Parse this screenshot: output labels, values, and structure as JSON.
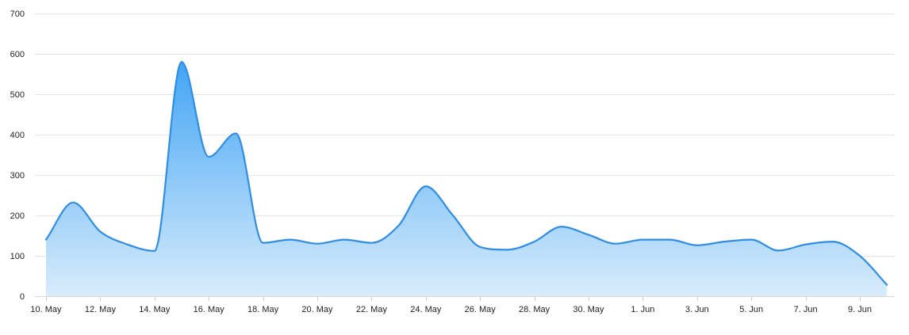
{
  "chart_data": {
    "type": "area",
    "title": "",
    "xlabel": "",
    "ylabel": "",
    "ylim": [
      0,
      700
    ],
    "grid": true,
    "legend": "none",
    "y_ticks": [
      "0",
      "100",
      "200",
      "300",
      "400",
      "500",
      "600",
      "700"
    ],
    "y_tick_values": [
      0,
      100,
      200,
      300,
      400,
      500,
      600,
      700
    ],
    "x_ticks": [
      "10. May",
      "12. May",
      "14. May",
      "16. May",
      "18. May",
      "20. May",
      "22. May",
      "24. May",
      "26. May",
      "28. May",
      "30. May",
      "1. Jun",
      "3. Jun",
      "5. Jun",
      "7. Jun",
      "9. Jun"
    ],
    "x_tick_dates": [
      "2020-05-10",
      "2020-05-12",
      "2020-05-14",
      "2020-05-16",
      "2020-05-18",
      "2020-05-20",
      "2020-05-22",
      "2020-05-24",
      "2020-05-26",
      "2020-05-28",
      "2020-05-30",
      "2020-06-01",
      "2020-06-03",
      "2020-06-05",
      "2020-06-07",
      "2020-06-09"
    ],
    "x": [
      "2020-05-10",
      "2020-05-11",
      "2020-05-12",
      "2020-05-13",
      "2020-05-14",
      "2020-05-15",
      "2020-05-16",
      "2020-05-17",
      "2020-05-18",
      "2020-05-19",
      "2020-05-20",
      "2020-05-21",
      "2020-05-22",
      "2020-05-23",
      "2020-05-24",
      "2020-05-25",
      "2020-05-26",
      "2020-05-27",
      "2020-05-28",
      "2020-05-29",
      "2020-05-30",
      "2020-05-31",
      "2020-06-01",
      "2020-06-02",
      "2020-06-03",
      "2020-06-04",
      "2020-06-05",
      "2020-06-06",
      "2020-06-07",
      "2020-06-08",
      "2020-06-09",
      "2020-06-10"
    ],
    "series": [
      {
        "values": [
          140,
          232,
          160,
          128,
          112,
          580,
          345,
          403,
          132,
          140,
          130,
          140,
          132,
          175,
          272,
          200,
          122,
          115,
          135,
          172,
          152,
          130,
          140,
          140,
          126,
          135,
          140,
          113,
          128,
          135,
          100,
          28
        ],
        "color": "#2f8de4",
        "fill_top": "#42a5f5",
        "fill_bottom": "#d8ecfb"
      }
    ]
  }
}
